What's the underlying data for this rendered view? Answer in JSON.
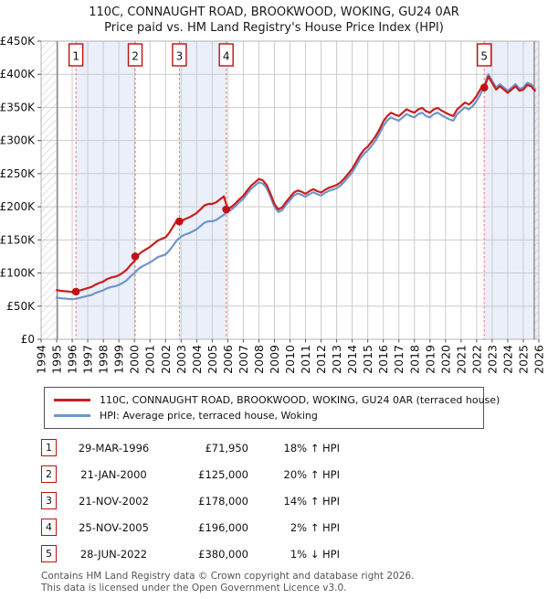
{
  "title": "110C, CONNAUGHT ROAD, BROOKWOOD, WOKING, GU24 0AR",
  "subtitle": "Price paid vs. HM Land Registry's House Price Index (HPI)",
  "legend": [
    {
      "label": "110C, CONNAUGHT ROAD, BROOKWOOD, WOKING, GU24 0AR (terraced house)",
      "color": "#cb1d1d"
    },
    {
      "label": "HPI: Average price, terraced house, Woking",
      "color": "#6e96ca"
    }
  ],
  "sales": [
    {
      "num": "1",
      "date": "29-MAR-1996",
      "price": "£71,950",
      "hpi": "18% ↑ HPI",
      "year": 1996.24,
      "value": 71.95
    },
    {
      "num": "2",
      "date": "21-JAN-2000",
      "price": "£125,000",
      "hpi": "20% ↑ HPI",
      "year": 2000.05,
      "value": 125
    },
    {
      "num": "3",
      "date": "21-NOV-2002",
      "price": "£178,000",
      "hpi": "14% ↑ HPI",
      "year": 2002.89,
      "value": 178
    },
    {
      "num": "4",
      "date": "25-NOV-2005",
      "price": "£196,000",
      "hpi": "2% ↑ HPI",
      "year": 2005.9,
      "value": 196
    },
    {
      "num": "5",
      "date": "28-JUN-2022",
      "price": "£380,000",
      "hpi": "1% ↓ HPI",
      "year": 2022.49,
      "value": 380
    }
  ],
  "footer": {
    "line1": "Contains HM Land Registry data © Crown copyright and database right 2026.",
    "line2": "This data is licensed under the Open Government Licence v3.0."
  },
  "colors": {
    "red_line": "#cb1d1d",
    "blue_line": "#6e96ca",
    "sale_dot": "#c01010",
    "sale_box_border": "#bb1111",
    "dashed_line": "#f26d6d",
    "band_fill": "#eaeffa",
    "grid": "#cccccc",
    "plot_border": "#b3b3b3",
    "data_bound_line": "#7a7a7a",
    "hatch_line": "#c3c3c3",
    "axis_text": "#111111",
    "footer_text": "#555555"
  },
  "chart_data": {
    "type": "line",
    "title": "Price paid vs. HM Land Registry's House Price Index (HPI)",
    "values_unit": "GBP thousands",
    "x_start": 1995.0,
    "x_step": 0.25,
    "xlim": [
      1994,
      2026
    ],
    "ylim": [
      0,
      450
    ],
    "grid": true,
    "legend_position": "below",
    "y_ticks_ascending": [
      "£0",
      "£50K",
      "£100K",
      "£150K",
      "£200K",
      "£250K",
      "£300K",
      "£350K",
      "£400K",
      "£450K"
    ],
    "x_ticks": [
      "1994",
      "1995",
      "1996",
      "1997",
      "1998",
      "1999",
      "2000",
      "2001",
      "2002",
      "2003",
      "2004",
      "2005",
      "2006",
      "2007",
      "2008",
      "2009",
      "2010",
      "2011",
      "2012",
      "2013",
      "2014",
      "2015",
      "2016",
      "2017",
      "2018",
      "2019",
      "2020",
      "2021",
      "2022",
      "2023",
      "2024",
      "2025",
      "2026"
    ],
    "shaded_bands": [
      [
        1996.24,
        2000.05
      ],
      [
        2002.89,
        2005.9
      ],
      [
        2022.49,
        2026
      ]
    ],
    "hatched_bands": [
      [
        1994,
        1995.05
      ],
      [
        2025.7,
        2026
      ]
    ],
    "series": [
      {
        "name": "110C, CONNAUGHT ROAD, BROOKWOOD, WOKING, GU24 0AR (terraced house)",
        "color": "#cb1d1d",
        "values": [
          74.3,
          73.2,
          72.6,
          72,
          71.4,
          72,
          73.8,
          75.5,
          77.3,
          79.1,
          82.6,
          85,
          87.3,
          90.9,
          93.2,
          94.4,
          96.8,
          100.3,
          105,
          112.1,
          118,
          127.4,
          132.2,
          135.8,
          139.4,
          144.2,
          149,
          151.5,
          153.9,
          161.1,
          170.7,
          180.3,
          177.9,
          181.4,
          183.7,
          187.1,
          190.6,
          196.3,
          202,
          204.3,
          204.3,
          206.6,
          211.2,
          215.8,
          196,
          200.1,
          205.2,
          211.3,
          216.5,
          224.6,
          231.8,
          236.9,
          242,
          239.9,
          232.8,
          219.5,
          204.2,
          196,
          199.1,
          207.3,
          214.4,
          221.6,
          224.6,
          222.6,
          219.5,
          223.6,
          226.7,
          223.6,
          221.6,
          225.6,
          228.7,
          230.7,
          232.8,
          236.9,
          243,
          250.1,
          257.3,
          267.5,
          277.7,
          285.9,
          291,
          298.1,
          306.3,
          316.5,
          328.8,
          336.9,
          342,
          339,
          336.9,
          342,
          347.1,
          344.1,
          342,
          347.1,
          349.2,
          344.1,
          342,
          347.1,
          349.2,
          345.1,
          342,
          339,
          336.9,
          347.1,
          352.2,
          357.4,
          354.3,
          359.4,
          367.6,
          377.8,
          380,
          396.8,
          386.9,
          377,
          381.9,
          377,
          372,
          377,
          381.9,
          375,
          377,
          383.9,
          381.9,
          375
        ]
      },
      {
        "name": "HPI: Average price, terraced house, Woking",
        "color": "#6e96ca",
        "values": [
          63,
          62,
          61.5,
          61,
          60.5,
          61,
          62.5,
          64,
          65.5,
          67,
          70,
          72,
          74,
          77,
          79,
          80,
          82,
          85,
          89,
          95,
          100,
          106,
          110,
          113,
          116,
          120,
          124,
          126,
          128,
          134,
          142,
          150,
          155,
          158,
          160,
          163,
          166,
          171,
          176,
          178,
          178,
          180,
          184,
          188,
          192,
          196,
          201,
          207,
          212,
          220,
          227,
          232,
          237,
          235,
          228,
          215,
          200,
          192,
          195,
          203,
          210,
          217,
          220,
          218,
          215,
          219,
          222,
          219,
          217,
          221,
          224,
          226,
          228,
          232,
          238,
          245,
          252,
          262,
          272,
          280,
          285,
          292,
          300,
          310,
          322,
          330,
          335,
          332,
          330,
          335,
          340,
          337,
          335,
          340,
          342,
          337,
          335,
          340,
          342,
          338,
          335,
          332,
          330,
          340,
          345,
          350,
          347,
          352,
          360,
          370,
          383,
          400,
          390,
          380,
          385,
          380,
          375,
          380,
          385,
          378,
          380,
          387,
          385,
          378
        ]
      }
    ]
  }
}
